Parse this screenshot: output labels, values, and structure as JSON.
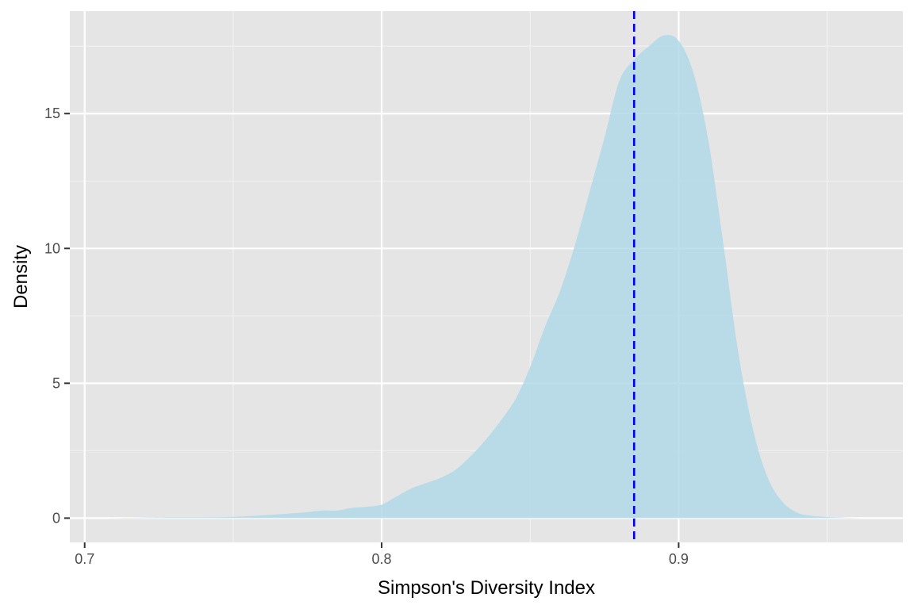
{
  "chart_data": {
    "type": "area",
    "title": "",
    "xlabel": "Simpson's Diversity Index",
    "ylabel": "Density",
    "xlim": [
      0.695,
      0.9755
    ],
    "ylim": [
      -0.9,
      18.8
    ],
    "x_ticks": [
      0.7,
      0.8,
      0.9
    ],
    "x_tick_labels": [
      "0.7",
      "0.8",
      "0.9"
    ],
    "x_minor_ticks": [
      0.75,
      0.85,
      0.95
    ],
    "y_ticks": [
      0,
      5,
      10,
      15
    ],
    "y_tick_labels": [
      "0",
      "5",
      "10",
      "15"
    ],
    "y_minor_ticks": [
      2.5,
      7.5,
      12.5,
      17.5
    ],
    "grid": true,
    "legend": "none",
    "colors": {
      "panel_background": "#e5e5e5",
      "grid_major": "#ffffff",
      "grid_minor": "#f2f2f2",
      "density_fill": "#add8e6",
      "reference_line": "#0000ee"
    },
    "reference_line": {
      "x": 0.885,
      "style": "dashed"
    },
    "series": [
      {
        "x": [
          0.706,
          0.72,
          0.73,
          0.74,
          0.75,
          0.76,
          0.77,
          0.775,
          0.78,
          0.785,
          0.79,
          0.795,
          0.8,
          0.805,
          0.81,
          0.815,
          0.82,
          0.825,
          0.83,
          0.835,
          0.84,
          0.845,
          0.85,
          0.855,
          0.86,
          0.865,
          0.87,
          0.875,
          0.88,
          0.885,
          0.89,
          0.895,
          0.9,
          0.905,
          0.91,
          0.915,
          0.92,
          0.925,
          0.93,
          0.935,
          0.94,
          0.945,
          0.95,
          0.955,
          0.962
        ],
        "y": [
          0.0,
          0.02,
          0.03,
          0.03,
          0.05,
          0.1,
          0.18,
          0.22,
          0.28,
          0.28,
          0.38,
          0.42,
          0.5,
          0.8,
          1.1,
          1.3,
          1.5,
          1.8,
          2.3,
          2.9,
          3.6,
          4.4,
          5.6,
          7.1,
          8.4,
          10.1,
          12.1,
          14.1,
          16.2,
          17.0,
          17.5,
          17.9,
          17.7,
          16.5,
          14.0,
          10.2,
          6.2,
          3.3,
          1.5,
          0.6,
          0.2,
          0.08,
          0.04,
          0.02,
          0.0
        ]
      }
    ]
  }
}
